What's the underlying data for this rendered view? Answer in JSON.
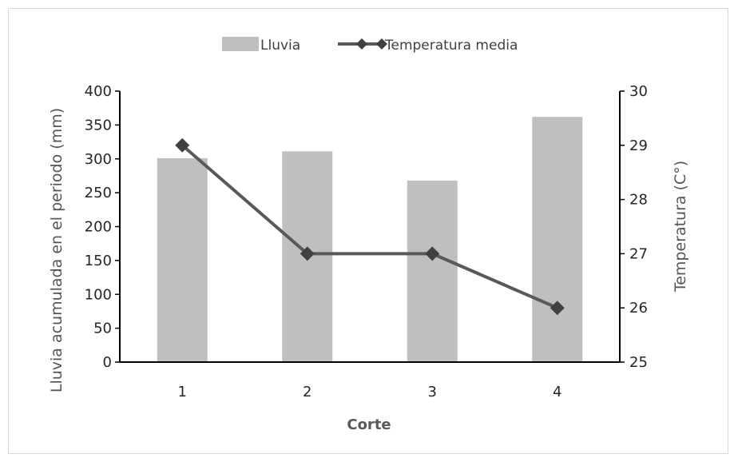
{
  "chart_data": {
    "type": "bar+line",
    "categories": [
      "1",
      "2",
      "3",
      "4"
    ],
    "series": [
      {
        "name": "Lluvia",
        "type": "bar",
        "axis": "left",
        "values": [
          301,
          311,
          268,
          362
        ],
        "color": "#bfbfbf"
      },
      {
        "name": "Temperatura media",
        "type": "line",
        "axis": "right",
        "marker": "diamond",
        "values": [
          29,
          27,
          27,
          26
        ],
        "color": "#595959"
      }
    ],
    "xlabel": "Corte",
    "ylabel": "Lluvia acumulada en el periodo (mm)",
    "y2label": "Temperatura (C°)",
    "ylim": [
      0,
      400
    ],
    "yticks": [
      "0",
      "50",
      "100",
      "150",
      "200",
      "250",
      "300",
      "350",
      "400"
    ],
    "y2lim": [
      25,
      30
    ],
    "y2ticks": [
      "25",
      "26",
      "27",
      "28",
      "29",
      "30"
    ],
    "grid": false,
    "legend_position": "top"
  }
}
